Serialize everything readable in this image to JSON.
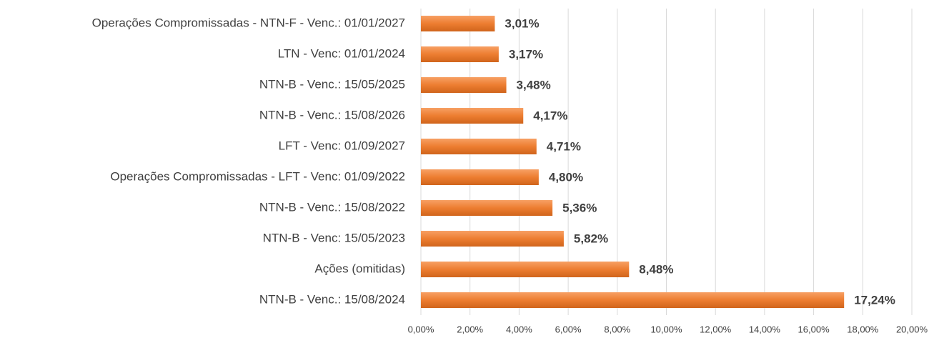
{
  "chart_data": {
    "type": "bar",
    "orientation": "horizontal",
    "categories": [
      "Operações Compromissadas - NTN-F - Venc.: 01/01/2027",
      "LTN - Venc: 01/01/2024",
      "NTN-B - Venc.: 15/05/2025",
      "NTN-B - Venc.: 15/08/2026",
      "LFT - Venc: 01/09/2027",
      "Operações Compromissadas - LFT - Venc: 01/09/2022",
      "NTN-B - Venc.: 15/08/2022",
      "NTN-B - Venc: 15/05/2023",
      "Ações (omitidas)",
      "NTN-B - Venc.: 15/08/2024"
    ],
    "values": [
      3.01,
      3.17,
      3.48,
      4.17,
      4.71,
      4.8,
      5.36,
      5.82,
      8.48,
      17.24
    ],
    "value_labels": [
      "3,01%",
      "3,17%",
      "3,48%",
      "4,17%",
      "4,71%",
      "4,80%",
      "5,36%",
      "5,82%",
      "8,48%",
      "17,24%"
    ],
    "color": "#ed7d31",
    "xlim": [
      0,
      20
    ],
    "xticks": [
      {
        "value": 0,
        "label": "0,00%"
      },
      {
        "value": 2,
        "label": "2,00%"
      },
      {
        "value": 4,
        "label": "4,00%"
      },
      {
        "value": 6,
        "label": "6,00%"
      },
      {
        "value": 8,
        "label": "8,00%"
      },
      {
        "value": 10,
        "label": "10,00%"
      },
      {
        "value": 12,
        "label": "12,00%"
      },
      {
        "value": 14,
        "label": "14,00%"
      },
      {
        "value": 16,
        "label": "16,00%"
      },
      {
        "value": 18,
        "label": "18,00%"
      },
      {
        "value": 20,
        "label": "20,00%"
      }
    ],
    "grid": true
  }
}
